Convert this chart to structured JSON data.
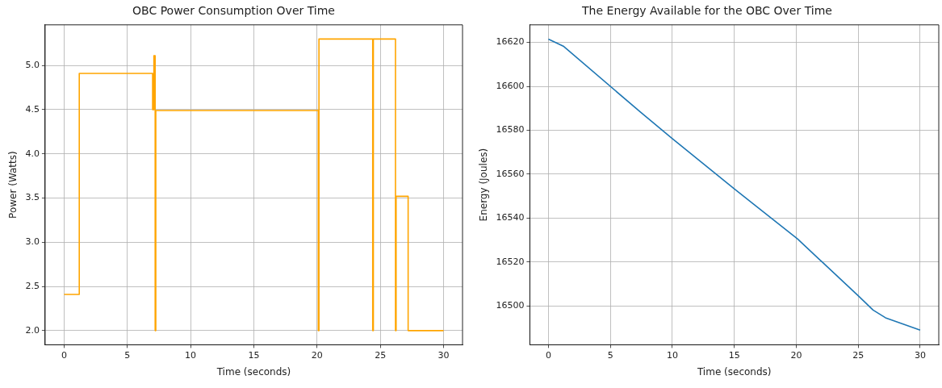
{
  "chart_data": [
    {
      "type": "step",
      "title": "OBC Power Consumption Over Time",
      "xlabel": "Time (seconds)",
      "ylabel": "Power (Watts)",
      "x": [
        0,
        1.2,
        7.0,
        7.1,
        7.2,
        7.25,
        20.1,
        20.15,
        24.4,
        24.45,
        26.2,
        26.25,
        27.2,
        30
      ],
      "series": [
        {
          "color": "#ffa500",
          "values": [
            2.41,
            4.91,
            4.5,
            5.11,
            2.0,
            4.49,
            2.0,
            5.3,
            2.0,
            5.3,
            2.0,
            3.52,
            2.0,
            2.0
          ]
        }
      ],
      "xlim": [
        -1.5,
        31.5
      ],
      "xticks": [
        0,
        5,
        10,
        15,
        20,
        25,
        30
      ],
      "ylim": [
        1.84,
        5.46
      ],
      "yticks": [
        {
          "value": 2,
          "label": "2.0"
        },
        {
          "value": 2.5,
          "label": "2.5"
        },
        {
          "value": 3,
          "label": "3.0"
        },
        {
          "value": 3.5,
          "label": "3.5"
        },
        {
          "value": 4,
          "label": "4.0"
        },
        {
          "value": 4.5,
          "label": "4.5"
        },
        {
          "value": 5,
          "label": "5.0"
        }
      ],
      "grid": true
    },
    {
      "type": "line",
      "title": "The Energy Available for the OBC Over Time",
      "xlabel": "Time (seconds)",
      "ylabel": "Energy (Joules)",
      "x": [
        0,
        1.2,
        7.5,
        10,
        15,
        20.1,
        25,
        26.2,
        27.2,
        30
      ],
      "series": [
        {
          "color": "#1f77b4",
          "values": [
            16621.5,
            16618.3,
            16587.9,
            16576.2,
            16553.3,
            16530.5,
            16504.6,
            16498.1,
            16494.6,
            16489.0
          ]
        }
      ],
      "xlim": [
        -1.5,
        31.5
      ],
      "xticks": [
        0,
        5,
        10,
        15,
        20,
        25,
        30
      ],
      "ylim": [
        16482.3,
        16628
      ],
      "yticks": [
        16500,
        16520,
        16540,
        16560,
        16580,
        16600,
        16620
      ],
      "grid": true
    }
  ]
}
